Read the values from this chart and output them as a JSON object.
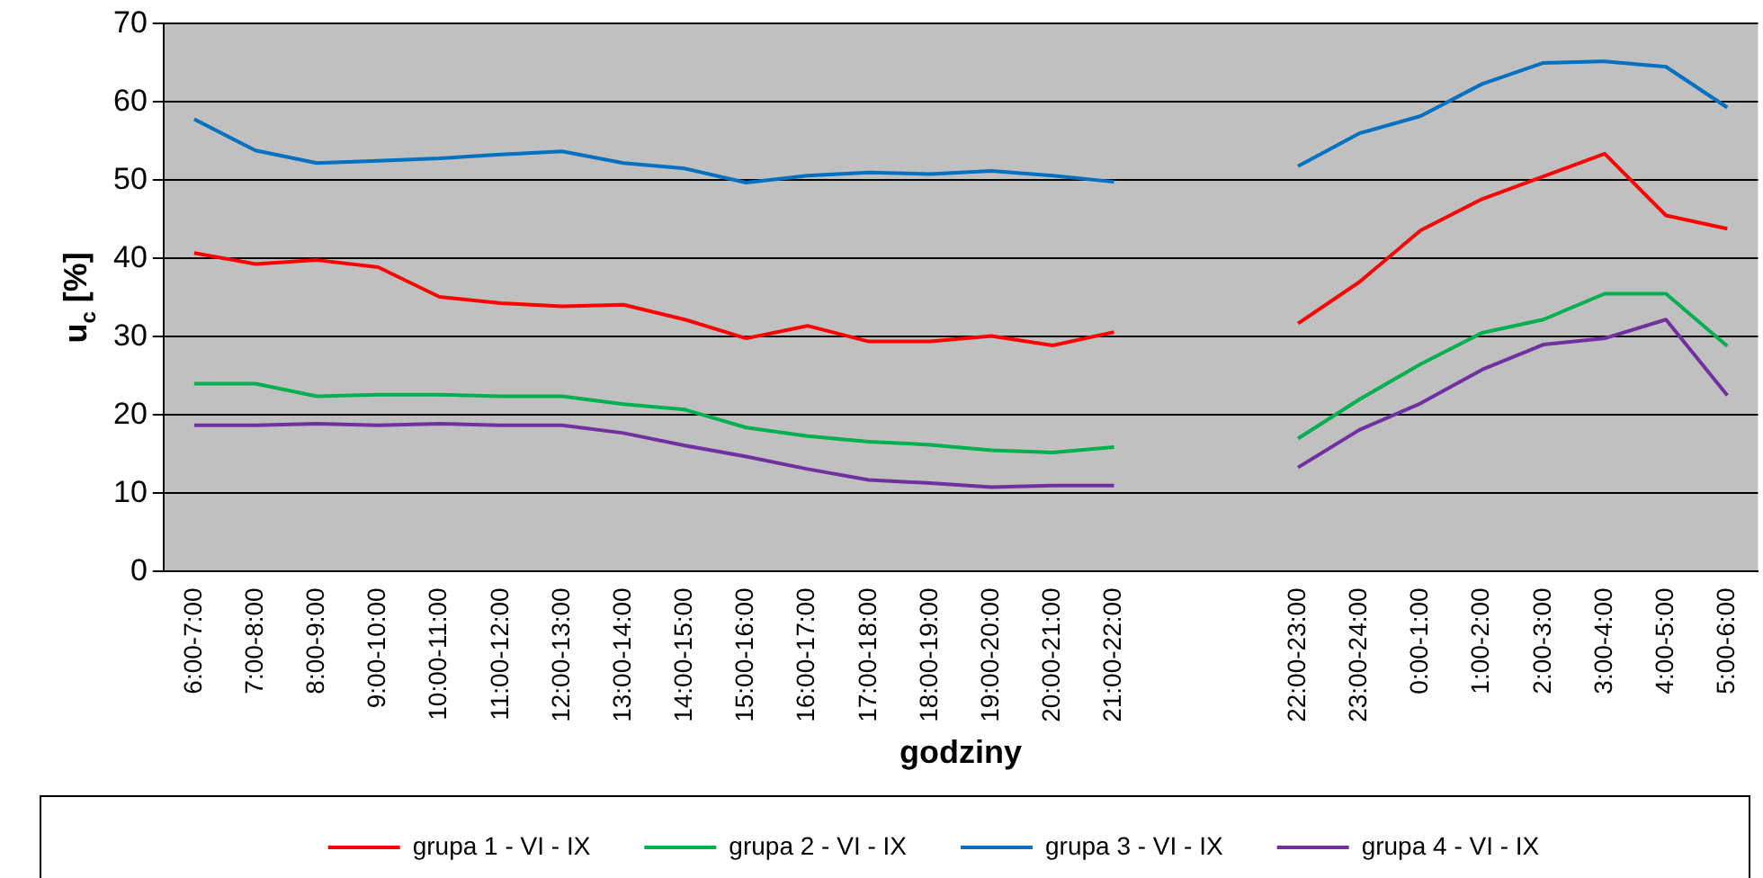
{
  "chart_data": {
    "type": "line",
    "xlabel": "godziny",
    "ylabel": "u$_{c}$ [%]",
    "categories": [
      "6:00-7:00",
      "7:00-8:00",
      "8:00-9:00",
      "9:00-10:00",
      "10:00-11:00",
      "11:00-12:00",
      "12:00-13:00",
      "13:00-14:00",
      "14:00-15:00",
      "15:00-16:00",
      "16:00-17:00",
      "17:00-18:00",
      "18:00-19:00",
      "19:00-20:00",
      "20:00-21:00",
      "21:00-22:00",
      null,
      null,
      "22:00-23:00",
      "23:00-24:00",
      "0:00-1:00",
      "1:00-2:00",
      "2:00-3:00",
      "3:00-4:00",
      "4:00-5:00",
      "5:00-6:00"
    ],
    "series": [
      {
        "name": "grupa 1 - VI - IX",
        "color": "#ff0000",
        "values": [
          40.7,
          39.3,
          39.8,
          38.9,
          35.1,
          34.3,
          33.9,
          34.1,
          32.2,
          29.8,
          31.4,
          29.4,
          29.4,
          30.1,
          28.9,
          30.6,
          null,
          null,
          31.7,
          37,
          43.6,
          47.6,
          50.5,
          53.4,
          45.5,
          43.8
        ]
      },
      {
        "name": "grupa 2 - VI - IX",
        "color": "#00b050",
        "values": [
          24,
          24,
          22.4,
          22.6,
          22.6,
          22.4,
          22.4,
          21.4,
          20.7,
          18.4,
          17.3,
          16.6,
          16.2,
          15.5,
          15.2,
          15.9,
          null,
          null,
          17,
          22,
          26.5,
          30.5,
          32.2,
          35.5,
          35.5,
          28.8
        ]
      },
      {
        "name": "grupa 3 - VI - IX",
        "color": "#0070c0",
        "values": [
          57.8,
          53.8,
          52.2,
          52.5,
          52.8,
          53.3,
          53.7,
          52.2,
          51.5,
          49.7,
          50.6,
          51,
          50.8,
          51.2,
          50.6,
          49.8,
          null,
          null,
          51.8,
          56,
          58.2,
          62.3,
          65,
          65.2,
          64.5,
          59.3
        ]
      },
      {
        "name": "grupa 4 - VI - IX",
        "color": "#7030a0",
        "values": [
          18.7,
          18.7,
          18.9,
          18.7,
          18.9,
          18.7,
          18.7,
          17.7,
          16.1,
          14.7,
          13.1,
          11.7,
          11.3,
          10.8,
          11,
          11,
          null,
          null,
          13.3,
          18.1,
          21.5,
          25.8,
          29,
          29.8,
          32.2,
          22.5
        ]
      }
    ],
    "ylim": [
      0,
      70
    ],
    "yticks": [
      0,
      10,
      20,
      30,
      40,
      50,
      60,
      70
    ],
    "grid": "y",
    "legend": "bottom",
    "marker": "none",
    "line_style": "solid"
  }
}
